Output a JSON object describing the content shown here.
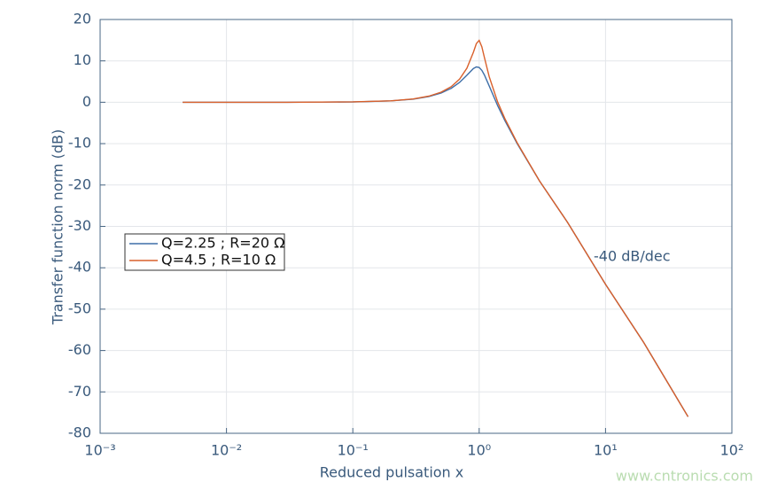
{
  "chart_data": {
    "type": "line",
    "x_label": "Reduced pulsation x",
    "y_label": "Transfer function norm (dB)",
    "annotation": "-40 dB/dec",
    "watermark": "www.cntronics.com",
    "x": [
      0.0045,
      0.01,
      0.03,
      0.1,
      0.2,
      0.3,
      0.4,
      0.5,
      0.6,
      0.7,
      0.8,
      0.9,
      0.95,
      1,
      1.05,
      1.1,
      1.2,
      1.4,
      1.6,
      2,
      3,
      5,
      10,
      20,
      45
    ],
    "series": [
      {
        "name": "Q=2.25 ; R=20 Ω",
        "color": "#3f6fa8",
        "values": [
          0,
          0,
          0,
          0.08,
          0.33,
          0.75,
          1.37,
          2.23,
          3.36,
          4.8,
          6.53,
          8.15,
          8.54,
          8.4,
          7.7,
          6.59,
          3.96,
          -0.81,
          -4.48,
          -10,
          -19,
          -29,
          -44,
          -58,
          -76
        ]
      },
      {
        "name": "Q=4.5 ; R=10 Ω",
        "color": "#d9602b",
        "values": [
          0,
          0,
          0,
          0.09,
          0.35,
          0.8,
          1.48,
          2.44,
          3.76,
          5.6,
          8.24,
          12.08,
          14.17,
          14.96,
          13.4,
          10.82,
          6.2,
          0.07,
          -4.0,
          -9.8,
          -19,
          -29,
          -44,
          -58,
          -76
        ]
      }
    ],
    "x_log": true,
    "xlim": [
      0.001,
      100
    ],
    "xticks": [
      {
        "value": 0.001,
        "label": "10⁻³"
      },
      {
        "value": 0.01,
        "label": "10⁻²"
      },
      {
        "value": 0.1,
        "label": "10⁻¹"
      },
      {
        "value": 1,
        "label": "10⁰"
      },
      {
        "value": 10,
        "label": "10¹"
      },
      {
        "value": 100,
        "label": "10²"
      }
    ],
    "ylim": [
      -80,
      20
    ],
    "yticks": [
      -80,
      -70,
      -60,
      -50,
      -40,
      -30,
      -20,
      -10,
      0,
      10,
      20
    ],
    "grid": true
  }
}
